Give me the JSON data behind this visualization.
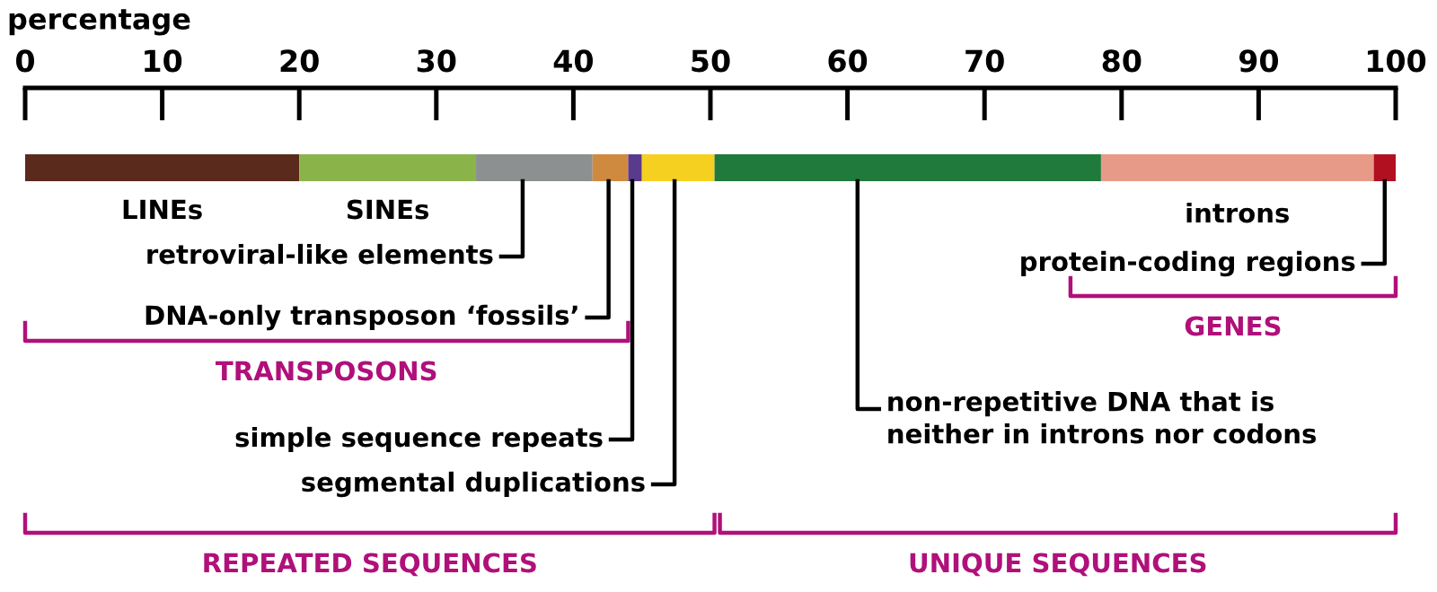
{
  "chart_data": {
    "type": "bar",
    "orientation": "horizontal",
    "stacked": true,
    "xlabel": "percentage",
    "categories": [
      null
    ],
    "series": [
      {
        "name": "LINEs",
        "color": "#5a2a1c",
        "values": [
          20
        ]
      },
      {
        "name": "SINEs",
        "color": "#8ab34a",
        "values": [
          12.9
        ]
      },
      {
        "name": "retroviral-like elements",
        "color": "#8c9090",
        "values": [
          8.5
        ]
      },
      {
        "name": "DNA-only transposon ‘fossils’",
        "color": "#d08a40",
        "values": [
          2.6
        ]
      },
      {
        "name": "simple sequence repeats",
        "color": "#5a3a8a",
        "values": [
          1
        ]
      },
      {
        "name": "segmental duplications",
        "color": "#f5d020",
        "values": [
          5.3
        ]
      },
      {
        "name": "non-repetitive DNA that is\nneither in introns nor codons",
        "color": "#1f7a3c",
        "values": [
          28.2
        ]
      },
      {
        "name": "introns",
        "color": "#e89a88",
        "values": [
          19.9
        ]
      },
      {
        "name": "protein-coding regions",
        "color": "#b01020",
        "values": [
          1.6
        ]
      }
    ],
    "xlim": [
      0,
      100
    ],
    "xticks": [
      0,
      10,
      20,
      30,
      40,
      50,
      60,
      70,
      80,
      90,
      100
    ],
    "annotations": [
      "TRANSPOSONS",
      "GENES",
      "REPEATED SEQUENCES",
      "UNIQUE SEQUENCES"
    ]
  }
}
